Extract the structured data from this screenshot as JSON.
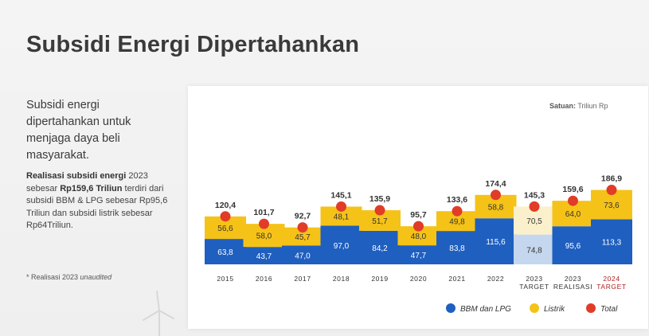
{
  "title": "Subsidi Energi Dipertahankan",
  "description": "Subsidi energi dipertahankan untuk menjaga daya beli masyarakat.",
  "detail": {
    "bold1": "Realisasi subsidi energi",
    "text1": " 2023 sebesar ",
    "bold2": "Rp159,6 Triliun",
    "text2": " terdiri dari subsidi BBM & LPG sebesar Rp95,6 Triliun dan subsidi listrik sebesar Rp64Triliun."
  },
  "footnote": {
    "prefix": "* Realisasi 2023 ",
    "italic": "unaudited"
  },
  "unit": {
    "label": "Satuan:",
    "value": " Triliun Rp"
  },
  "colors": {
    "bbm": "#1f5fbf",
    "listrik": "#f5c218",
    "total": "#e03c28",
    "bbm_target": "#c5d7ee",
    "listrik_target": "#fbf0cc",
    "target_label": "#b01e1e"
  },
  "chart_data": {
    "type": "bar",
    "stacked": true,
    "categories": [
      "2015",
      "2016",
      "2017",
      "2018",
      "2019",
      "2020",
      "2021",
      "2022",
      "2023",
      "2023",
      "2024"
    ],
    "category_sublabels": [
      "",
      "",
      "",
      "",
      "",
      "",
      "",
      "",
      "TARGET",
      "REALISASI",
      "TARGET"
    ],
    "series": [
      {
        "name": "BBM dan LPG",
        "values": [
          63.8,
          43.7,
          47.0,
          97.0,
          84.2,
          47.7,
          83.8,
          115.6,
          74.8,
          95.6,
          113.3
        ],
        "labels": [
          "63,8",
          "43,7",
          "47,0",
          "97,0",
          "84,2",
          "47,7",
          "83,8",
          "115,6",
          "74,8",
          "95,6",
          "113,3"
        ]
      },
      {
        "name": "Listrik",
        "values": [
          56.6,
          58.0,
          45.7,
          48.1,
          51.7,
          48.0,
          49.8,
          58.8,
          70.5,
          64.0,
          73.6
        ],
        "labels": [
          "56,6",
          "58,0",
          "45,7",
          "48,1",
          "51,7",
          "48,0",
          "49,8",
          "58,8",
          "70,5",
          "64,0",
          "73,6"
        ]
      },
      {
        "name": "Total",
        "values": [
          120.4,
          101.7,
          92.7,
          145.1,
          135.9,
          95.7,
          133.6,
          174.4,
          145.3,
          159.6,
          186.9
        ],
        "labels": [
          "120,4",
          "101,7",
          "92,7",
          "145,1",
          "135,9",
          "95,7",
          "133,6",
          "174,4",
          "145,3",
          "159,6",
          "186,9"
        ]
      }
    ],
    "highlight_categories": [
      8
    ],
    "red_label_categories": [
      10
    ],
    "legend_placement": "bottom-right",
    "grid": false
  }
}
